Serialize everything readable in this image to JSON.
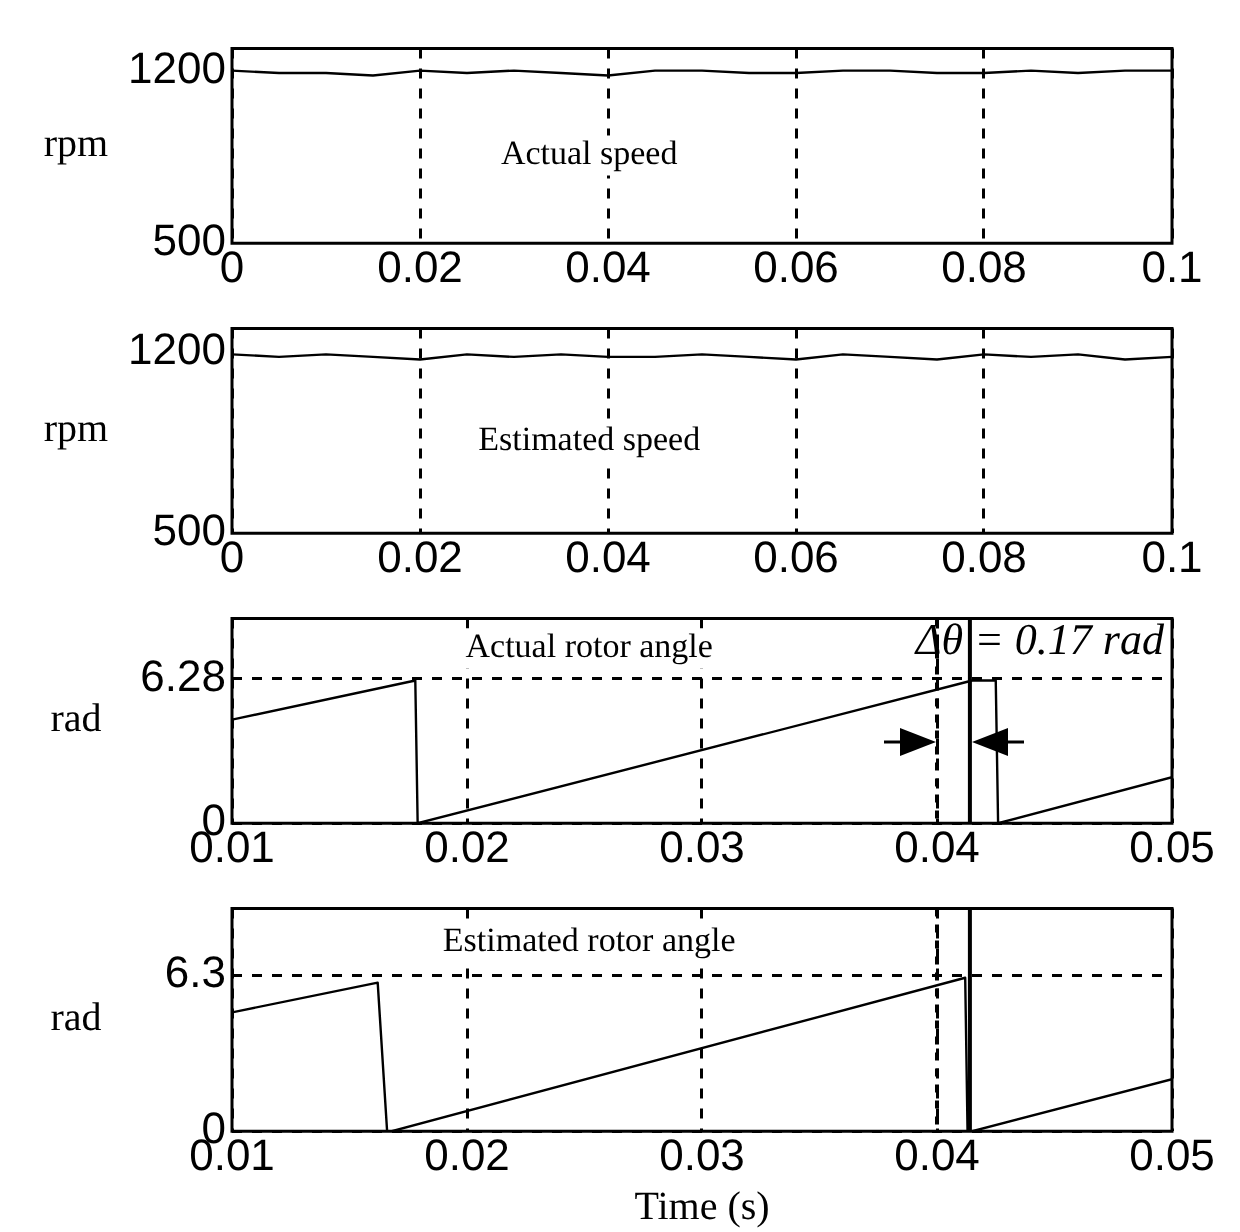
{
  "chart_data": [
    {
      "type": "line",
      "ylabel": "rpm",
      "annotations": [
        "Actual speed"
      ],
      "x": [
        0,
        0.005,
        0.01,
        0.015,
        0.02,
        0.025,
        0.03,
        0.035,
        0.04,
        0.045,
        0.05,
        0.055,
        0.06,
        0.065,
        0.07,
        0.075,
        0.08,
        0.085,
        0.09,
        0.095,
        0.1
      ],
      "series": [
        {
          "color": "#000000",
          "values": [
            1200,
            1190,
            1190,
            1180,
            1200,
            1190,
            1200,
            1190,
            1180,
            1200,
            1200,
            1190,
            1190,
            1200,
            1200,
            1190,
            1190,
            1200,
            1190,
            1200,
            1200
          ]
        }
      ],
      "xlim": [
        0,
        0.1
      ],
      "xticks": [
        0,
        0.02,
        0.04,
        0.06,
        0.08,
        0.1
      ],
      "ylim": [
        500,
        1290
      ],
      "yticks": [
        500,
        1200
      ],
      "grid": "x",
      "line_style": "solid"
    },
    {
      "type": "line",
      "ylabel": "rpm",
      "annotations": [
        "Estimated speed"
      ],
      "x": [
        0,
        0.005,
        0.01,
        0.015,
        0.02,
        0.025,
        0.03,
        0.035,
        0.04,
        0.045,
        0.05,
        0.055,
        0.06,
        0.065,
        0.07,
        0.075,
        0.08,
        0.085,
        0.09,
        0.095,
        0.1
      ],
      "series": [
        {
          "color": "#000000",
          "values": [
            1190,
            1180,
            1190,
            1180,
            1170,
            1190,
            1180,
            1190,
            1180,
            1180,
            1190,
            1180,
            1170,
            1190,
            1180,
            1170,
            1190,
            1180,
            1190,
            1170,
            1180
          ]
        }
      ],
      "xlim": [
        0,
        0.1
      ],
      "xticks": [
        0,
        0.02,
        0.04,
        0.06,
        0.08,
        0.1
      ],
      "ylim": [
        500,
        1290
      ],
      "yticks": [
        500,
        1200
      ],
      "grid": "x",
      "line_style": "solid"
    },
    {
      "type": "line",
      "ylabel": "rad",
      "annotations": [
        "Actual rotor angle",
        "Δθ = 0.17 rad"
      ],
      "x": [
        0.01,
        0.0178,
        0.0179,
        0.0415,
        0.0425,
        0.0426,
        0.05
      ],
      "series": [
        {
          "color": "#000000",
          "values": [
            4.5,
            6.2,
            0,
            6.2,
            6.2,
            0,
            2
          ]
        }
      ],
      "xlim": [
        0.01,
        0.05
      ],
      "xticks": [
        0.01,
        0.02,
        0.03,
        0.04,
        0.05
      ],
      "ylim": [
        0,
        8.9
      ],
      "yticks": [
        0,
        6.28
      ],
      "grid": true,
      "line_style": "solid",
      "ref_lines": [
        {
          "axis": "x",
          "value": 0.04,
          "line_style": "dashed"
        },
        {
          "axis": "x",
          "value": 0.0414,
          "line_style": "solid"
        }
      ]
    },
    {
      "type": "line",
      "ylabel": "rad",
      "xlabel": "Time (s)",
      "annotations": [
        "Estimated rotor angle"
      ],
      "x": [
        0.01,
        0.0162,
        0.0166,
        0.0168,
        0.0412,
        0.0413,
        0.0415,
        0.05
      ],
      "series": [
        {
          "color": "#000000",
          "values": [
            4.8,
            6,
            0,
            0,
            6.2,
            0,
            0,
            2.1
          ]
        }
      ],
      "xlim": [
        0.01,
        0.05
      ],
      "xticks": [
        0.01,
        0.02,
        0.03,
        0.04,
        0.05
      ],
      "ylim": [
        0,
        9
      ],
      "yticks": [
        0,
        6.3
      ],
      "grid": true,
      "line_style": "solid",
      "ref_lines": [
        {
          "axis": "x",
          "value": 0.04,
          "line_style": "dashed"
        },
        {
          "axis": "x",
          "value": 0.0414,
          "line_style": "solid"
        }
      ]
    }
  ]
}
